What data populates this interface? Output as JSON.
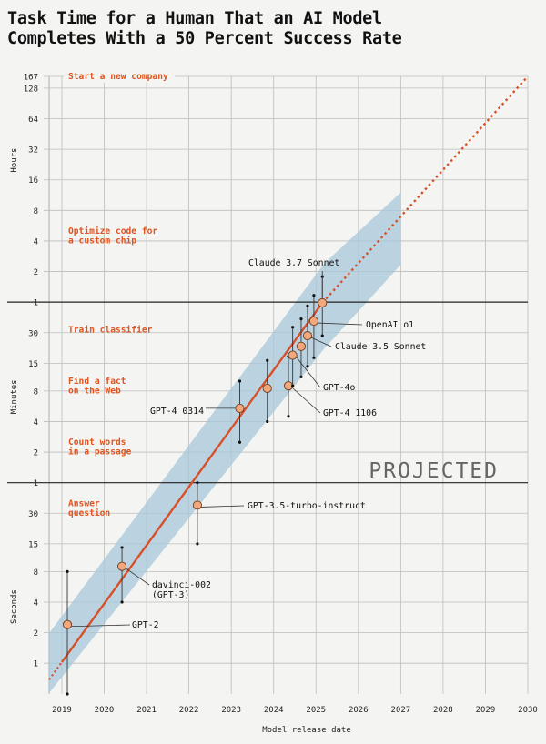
{
  "title": "Task Time for a Human That an AI Model\nCompletes With a 50 Percent Success Rate",
  "colors": {
    "trend": "#d6502a",
    "band": "#a8c8db",
    "point_fill": "#f2a87a",
    "task_text": "#e0541f",
    "grid": "#bdbdbd",
    "background": "#f4f4f2"
  },
  "chart_data": {
    "type": "scatter",
    "title": "Task Time for a Human That an AI Model Completes With a 50 Percent Success Rate",
    "xlabel": "Model release date",
    "xlim": [
      2018.7,
      2030
    ],
    "x_ticks": [
      2019,
      2020,
      2021,
      2022,
      2023,
      2024,
      2025,
      2026,
      2027,
      2028,
      2029,
      2030
    ],
    "y_scale": "log",
    "y_unit": "minutes",
    "ylim_minutes": [
      0.0083,
      10020
    ],
    "y_groups": [
      {
        "label": "Seconds",
        "ticks": [
          {
            "label": "1",
            "minutes": 0.01667
          },
          {
            "label": "2",
            "minutes": 0.03333
          },
          {
            "label": "4",
            "minutes": 0.06667
          },
          {
            "label": "8",
            "minutes": 0.1333
          },
          {
            "label": "15",
            "minutes": 0.25
          },
          {
            "label": "30",
            "minutes": 0.5
          }
        ]
      },
      {
        "label": "Minutes",
        "ticks": [
          {
            "label": "1",
            "minutes": 1
          },
          {
            "label": "2",
            "minutes": 2
          },
          {
            "label": "4",
            "minutes": 4
          },
          {
            "label": "8",
            "minutes": 8
          },
          {
            "label": "15",
            "minutes": 15
          },
          {
            "label": "30",
            "minutes": 30
          }
        ]
      },
      {
        "label": "Hours",
        "ticks": [
          {
            "label": "1",
            "minutes": 60
          },
          {
            "label": "2",
            "minutes": 120
          },
          {
            "label": "4",
            "minutes": 240
          },
          {
            "label": "8",
            "minutes": 480
          },
          {
            "label": "16",
            "minutes": 960
          },
          {
            "label": "32",
            "minutes": 1920
          },
          {
            "label": "64",
            "minutes": 3840
          },
          {
            "label": "128",
            "minutes": 7680
          },
          {
            "label": "167",
            "minutes": 10020
          }
        ]
      }
    ],
    "task_examples": [
      {
        "label": "Answer\nquestion",
        "minutes": 0.5
      },
      {
        "label": "Count words\nin a passage",
        "minutes": 2
      },
      {
        "label": "Find a fact\non the Web",
        "minutes": 8
      },
      {
        "label": "Train classifier",
        "minutes": 32
      },
      {
        "label": "Optimize code for\na custom chip",
        "minutes": 240
      },
      {
        "label": "Start a new company",
        "minutes": 10020
      }
    ],
    "series": [
      {
        "points": [
          {
            "x": 2019.13,
            "minutes": 0.04,
            "lo": 0.0083,
            "hi": 0.1333,
            "label": "GPT-2"
          },
          {
            "x": 2020.42,
            "minutes": 0.15,
            "lo": 0.0667,
            "hi": 0.23,
            "label": "davinci-002\n(GPT-3)"
          },
          {
            "x": 2022.2,
            "minutes": 0.6,
            "lo": 0.25,
            "hi": 1,
            "label": "GPT-3.5-turbo-instruct"
          },
          {
            "x": 2023.2,
            "minutes": 5.4,
            "lo": 2.5,
            "hi": 10,
            "label": "GPT-4 0314"
          },
          {
            "x": 2023.85,
            "minutes": 8.5,
            "lo": 4,
            "hi": 16,
            "label": ""
          },
          {
            "x": 2024.35,
            "minutes": 9,
            "lo": 4.5,
            "hi": 17.5,
            "label": "GPT-4 1106"
          },
          {
            "x": 2024.45,
            "minutes": 18,
            "lo": 9,
            "hi": 34,
            "label": "GPT-4o"
          },
          {
            "x": 2024.65,
            "minutes": 22,
            "lo": 11,
            "hi": 41,
            "label": ""
          },
          {
            "x": 2024.8,
            "minutes": 28,
            "lo": 14,
            "hi": 55,
            "label": "Claude 3.5 Sonnet"
          },
          {
            "x": 2024.95,
            "minutes": 39,
            "lo": 17,
            "hi": 70,
            "label": "OpenAI o1"
          },
          {
            "x": 2025.15,
            "minutes": 59,
            "lo": 28,
            "hi": 107,
            "label": "Claude 3.7 Sonnet"
          }
        ]
      }
    ],
    "trend": {
      "x": [
        2018.7,
        2025.15
      ],
      "minutes": [
        0.0115,
        59
      ]
    },
    "projection": {
      "x": [
        2025.15,
        2030
      ],
      "minutes": [
        59,
        10020
      ]
    },
    "band": [
      {
        "x": 2018.7,
        "lo_minutes": 0.0085,
        "hi_minutes": 0.033
      },
      {
        "x": 2025.2,
        "lo_minutes": 21,
        "hi_minutes": 145
      },
      {
        "x": 2027,
        "lo_minutes": 140,
        "hi_minutes": 720
      }
    ],
    "projected_label": "PROJECTED",
    "grid": true
  }
}
